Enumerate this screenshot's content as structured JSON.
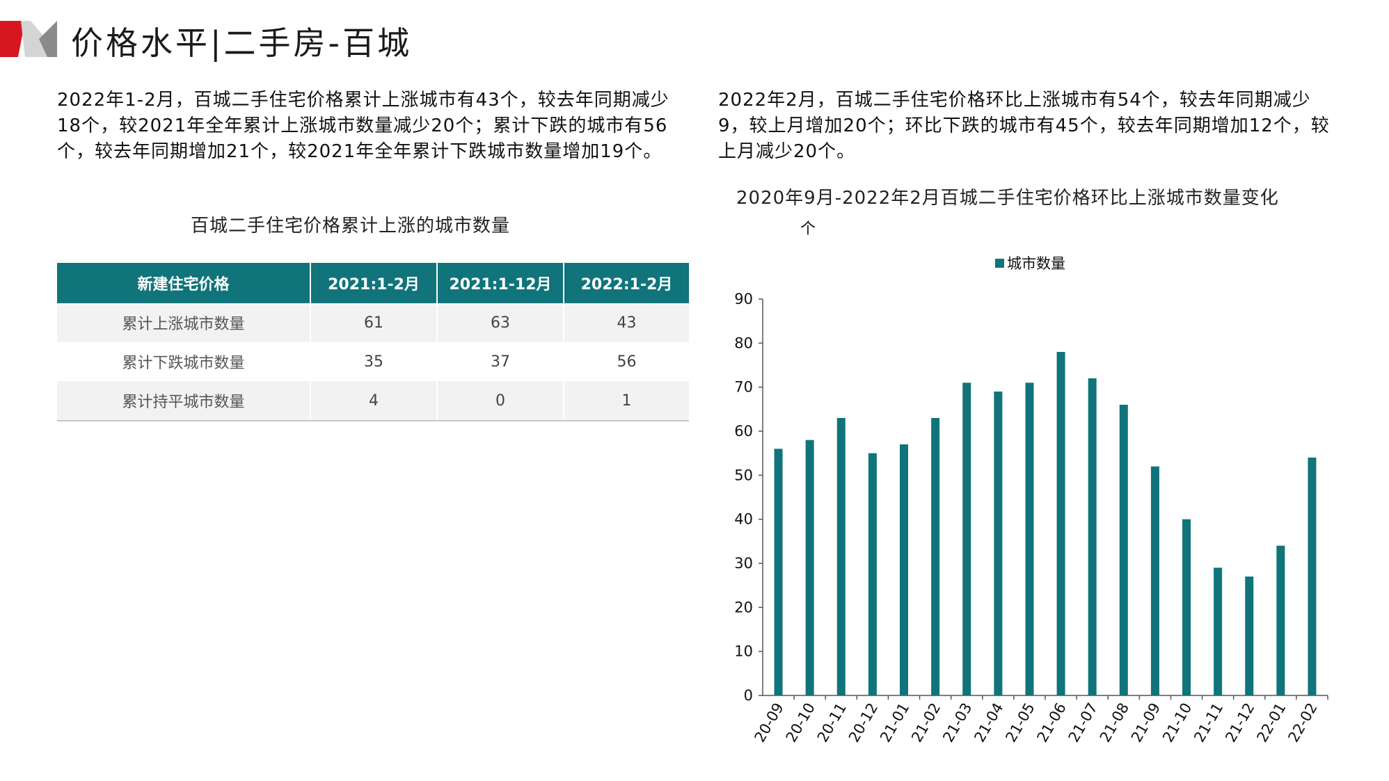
{
  "header": {
    "title": "价格水平|二手房-百城"
  },
  "left": {
    "paragraph": "2022年1-2月，百城二手住宅价格累计上涨城市有43个，较去年同期减少18个，较2021年全年累计上涨城市数量减少20个；累计下跌的城市有56个，较去年同期增加21个，较2021年全年累计下跌城市数量增加19个。",
    "table_caption": "百城二手住宅价格累计上涨的城市数量",
    "table": {
      "headers": [
        "新建住宅价格",
        "2021:1-2月",
        "2021:1-12月",
        "2022:1-2月"
      ],
      "rows": [
        [
          "累计上涨城市数量",
          "61",
          "63",
          "43"
        ],
        [
          "累计下跌城市数量",
          "35",
          "37",
          "56"
        ],
        [
          "累计持平城市数量",
          "4",
          "0",
          "1"
        ]
      ]
    }
  },
  "right": {
    "paragraph": "2022年2月，百城二手住宅价格环比上涨城市有54个，较去年同期减少9，较上月增加20个；环比下跌的城市有45个，较去年同期增加12个，较上月减少20个。",
    "chart_caption": "2020年9月-2022年2月百城二手住宅价格环比上涨城市数量变化"
  },
  "colors": {
    "brand_red": "#d7171f",
    "bar": "#10747a",
    "table_header": "#10747a"
  },
  "chart_data": {
    "type": "bar",
    "title": "2020年9月-2022年2月百城二手住宅价格环比上涨城市数量变化",
    "unit_label": "个",
    "ylim": [
      0,
      90
    ],
    "y_ticks": [
      0,
      10,
      20,
      30,
      40,
      50,
      60,
      70,
      80,
      90
    ],
    "legend": {
      "position": "top-center"
    },
    "grid": false,
    "categories": [
      "20-09",
      "20-10",
      "20-11",
      "20-12",
      "21-01",
      "21-02",
      "21-03",
      "21-04",
      "21-05",
      "21-06",
      "21-07",
      "21-08",
      "21-09",
      "21-10",
      "21-11",
      "21-12",
      "22-01",
      "22-02"
    ],
    "series": [
      {
        "name": "城市数量",
        "values": [
          56,
          58,
          63,
          55,
          57,
          63,
          71,
          69,
          71,
          78,
          72,
          66,
          52,
          40,
          29,
          27,
          34,
          54
        ]
      }
    ]
  }
}
